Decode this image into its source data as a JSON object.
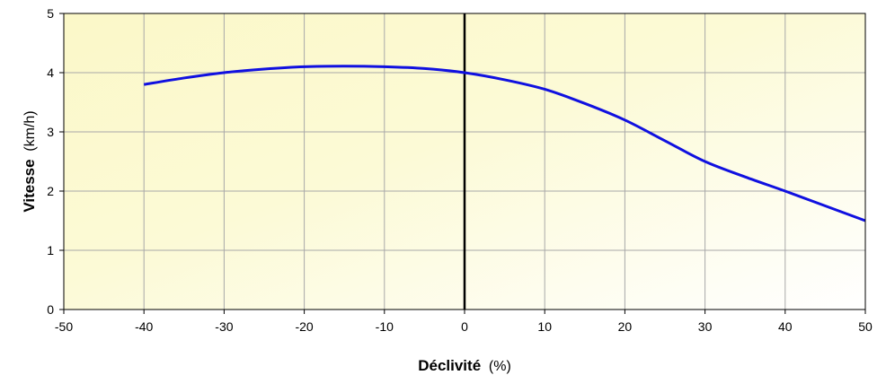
{
  "chart_data": {
    "type": "line",
    "xlabel": "Déclivité",
    "xlabel_unit": "(%)",
    "ylabel": "Vitesse",
    "ylabel_unit": "(km/h)",
    "xlim": [
      -50,
      50
    ],
    "ylim": [
      0,
      5
    ],
    "x_ticks": [
      -50,
      -40,
      -30,
      -20,
      -10,
      0,
      10,
      20,
      30,
      40,
      50
    ],
    "y_ticks": [
      0,
      1,
      2,
      3,
      4,
      5
    ],
    "grid": true,
    "vertical_reference_line_at_x": 0,
    "series": [
      {
        "color": "#1010E0",
        "x": [
          -40,
          -35,
          -30,
          -25,
          -20,
          -15,
          -10,
          -5,
          0,
          5,
          10,
          15,
          20,
          25,
          30,
          35,
          40,
          45,
          50
        ],
        "y": [
          3.8,
          3.91,
          4.0,
          4.06,
          4.1,
          4.11,
          4.1,
          4.07,
          4.0,
          3.88,
          3.72,
          3.48,
          3.2,
          2.85,
          2.5,
          2.24,
          2.0,
          1.75,
          1.5
        ]
      }
    ],
    "background": {
      "left_color": "#FBF8C8",
      "right_color": "#FFFFFF"
    },
    "grid_color": "#A8A8A8",
    "axis_color": "#000000"
  }
}
